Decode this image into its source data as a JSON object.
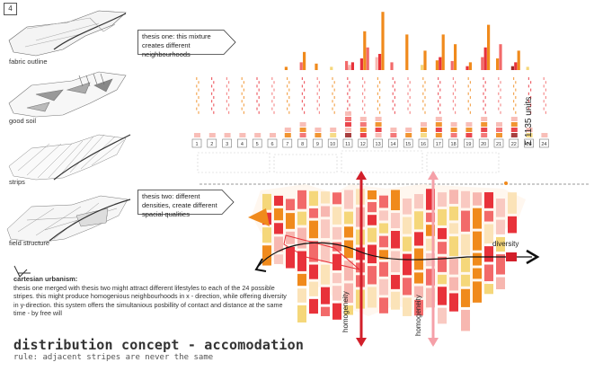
{
  "page_number": "4",
  "left_panels": [
    {
      "label": "fabric outline"
    },
    {
      "label": "good soil"
    },
    {
      "label": "strips"
    },
    {
      "label": "field structure"
    }
  ],
  "callouts": {
    "thesis_one": "thesis one: this mixture creates different neighbourhoods",
    "thesis_two": "thesis two: different densities, create different spacial qualities"
  },
  "cartesian": {
    "heading": "cartesian urbanism:",
    "text": "thesis one merged with thesis two might attract different lifestyles to each of the 24 possible stripes. this might produce homogenious neighbourhoods in x - direction, while offering diversity in y-direction. this system offers the simultanious posbillity of contact and distance at the same time - by free will"
  },
  "title": "distribution concept - accomodation",
  "subtitle": "rule: adjacent stripes are never the same",
  "units_label": "Σ 1135 units",
  "axis_labels": {
    "diversity": "diversity",
    "homogeneity_1": "homogeneity",
    "homogeneity_2": "homogeneity"
  },
  "chart_data": {
    "type": "bar",
    "categories": [
      "1",
      "2",
      "3",
      "4",
      "5",
      "6",
      "7",
      "8",
      "9",
      "10",
      "11",
      "12",
      "13",
      "14",
      "15",
      "16",
      "17",
      "18",
      "19",
      "20",
      "21",
      "22",
      "23",
      "24"
    ],
    "stack_colors": [
      "#f08a1c",
      "#e8323a",
      "#f26a6a",
      "#f7b7b0",
      "#f5d77a",
      "#9e2a2a"
    ],
    "stacks": [
      [],
      [],
      [],
      [],
      [],
      [],
      [
        [
          "#f08a1c",
          5
        ]
      ],
      [
        [
          "#f26a6a",
          12
        ],
        [
          "#f08a1c",
          28
        ]
      ],
      [
        [
          "#f08a1c",
          10
        ]
      ],
      [
        [
          "#f5d77a",
          5
        ]
      ],
      [
        [
          "#9e2a2a",
          4
        ],
        [
          "#f7b7b0",
          8
        ],
        [
          "#e8323a",
          12
        ],
        [
          "#f26a6a",
          14
        ]
      ],
      [
        [
          "#e8323a",
          18
        ],
        [
          "#f08a1c",
          60
        ],
        [
          "#f26a6a",
          35
        ]
      ],
      [
        [
          "#f7b7b0",
          20
        ],
        [
          "#e8323a",
          25
        ],
        [
          "#f08a1c",
          90
        ]
      ],
      [
        [
          "#f26a6a",
          12
        ]
      ],
      [
        [
          "#f08a1c",
          55
        ]
      ],
      [
        [
          "#f5d77a",
          8
        ],
        [
          "#f08a1c",
          30
        ]
      ],
      [
        [
          "#f08a1c",
          15
        ],
        [
          "#e8323a",
          20
        ],
        [
          "#f08a1c",
          55
        ]
      ],
      [
        [
          "#f26a6a",
          14
        ],
        [
          "#f08a1c",
          40
        ]
      ],
      [
        [
          "#e8323a",
          6
        ],
        [
          "#f08a1c",
          12
        ]
      ],
      [
        [
          "#f26a6a",
          20
        ],
        [
          "#e8323a",
          35
        ],
        [
          "#f08a1c",
          70
        ]
      ],
      [
        [
          "#f08a1c",
          18
        ],
        [
          "#f26a6a",
          40
        ]
      ],
      [
        [
          "#9e2a2a",
          6
        ],
        [
          "#e8323a",
          12
        ],
        [
          "#f08a1c",
          30
        ]
      ],
      [
        [
          "#f5d77a",
          5
        ]
      ],
      []
    ]
  }
}
